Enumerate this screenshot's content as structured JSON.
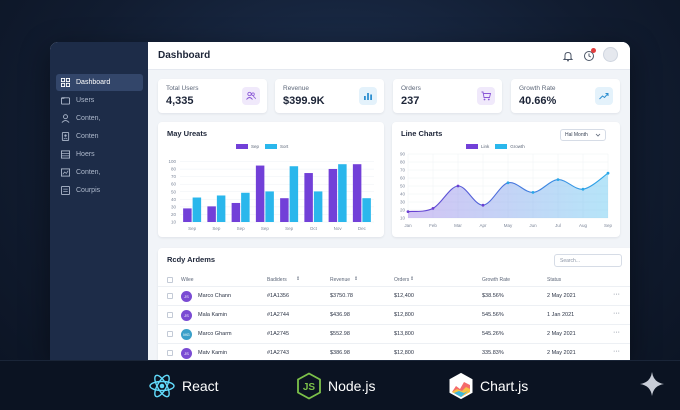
{
  "sidebar": {
    "items": [
      {
        "label": "Dashboard",
        "icon": "grid-icon",
        "active": true
      },
      {
        "label": "Users",
        "icon": "folder-icon"
      },
      {
        "label": "Conten,",
        "icon": "user-icon"
      },
      {
        "label": "Conten",
        "icon": "document-icon"
      },
      {
        "label": "Hoers",
        "icon": "table-icon"
      },
      {
        "label": "Conten,",
        "icon": "chart-icon"
      },
      {
        "label": "Courpis",
        "icon": "file-icon"
      }
    ]
  },
  "header": {
    "title": "Dashboard"
  },
  "stats": [
    {
      "label": "Total Users",
      "value": "4,335",
      "icon": "users-icon",
      "bg": "#f0e9fb",
      "fg": "#8a57d6"
    },
    {
      "label": "Revenue",
      "value": "$399.9K",
      "icon": "bar-chart-icon",
      "bg": "#e4f2fb",
      "fg": "#2d8fd0"
    },
    {
      "label": "Orders",
      "value": "237",
      "icon": "cart-icon",
      "bg": "#f0e9fb",
      "fg": "#8a57d6"
    },
    {
      "label": "Growth Rate",
      "value": "40.66%",
      "icon": "trend-up-icon",
      "bg": "#e4f2fb",
      "fg": "#2d8fd0"
    }
  ],
  "colors": {
    "purple": "#7240d8",
    "cyan": "#2ab7ec",
    "line": "#29a8e8"
  },
  "bar_panel": {
    "title": "May Ureats"
  },
  "line_panel": {
    "title": "Line Charts",
    "dropdown": "Hal Month"
  },
  "chart_data": [
    {
      "type": "bar",
      "title": "May Ureats",
      "categories": [
        "Sep",
        "Sep",
        "Sep",
        "Sep",
        "Sep",
        "Oct",
        "Nov",
        "Dec"
      ],
      "series": [
        {
          "name": "Sep",
          "values": [
            20,
            23,
            28,
            83,
            35,
            72,
            78,
            85
          ]
        },
        {
          "name": "Sort",
          "values": [
            36,
            39,
            43,
            45,
            82,
            45,
            85,
            35
          ]
        }
      ],
      "yticks": [
        10,
        20,
        30,
        40,
        50,
        60,
        70,
        80,
        100
      ],
      "ylim": [
        0,
        100
      ]
    },
    {
      "type": "area",
      "title": "Line Charts",
      "x": [
        "Jan",
        "Feb",
        "Mar",
        "Apr",
        "May",
        "Jun",
        "Jul",
        "Aug",
        "Sep"
      ],
      "series": [
        {
          "name": "Link",
          "values": [
            10,
            15,
            50,
            20,
            55,
            40,
            60,
            45,
            70
          ]
        },
        {
          "name": "Growth",
          "values": [
            10,
            15,
            50,
            20,
            55,
            40,
            60,
            45,
            70
          ]
        }
      ],
      "yticks": [
        10,
        20,
        30,
        40,
        50,
        60,
        70,
        80,
        90
      ],
      "ylim": [
        0,
        100
      ]
    }
  ],
  "table": {
    "title": "Rcdy Ardems",
    "search_placeholder": "Search...",
    "headers": [
      "Wilee",
      "Badiders",
      "Revenue",
      "Orders",
      "Growth Rate",
      "Status"
    ],
    "rows": [
      {
        "initials": "JS",
        "color": "#7a4bd3",
        "name": "Marco Chann",
        "id": "#1A1356",
        "revenue": "$3750.78",
        "orders": "$12,400",
        "growth": "$38.56%",
        "date": "2 May 2021"
      },
      {
        "initials": "JS",
        "color": "#7a4bd3",
        "name": "Mala Kamin",
        "id": "#1A2744",
        "revenue": "$436.98",
        "orders": "$12,800",
        "growth": "545.56%",
        "date": "1 Jan 2021"
      },
      {
        "initials": "MG",
        "color": "#3aa0c9",
        "name": "Marco Gharm",
        "id": "#1A2745",
        "revenue": "$552.98",
        "orders": "$13,800",
        "growth": "545.26%",
        "date": "2 May 2021"
      },
      {
        "initials": "JS",
        "color": "#7a4bd3",
        "name": "Matv Kamin",
        "id": "#1A2743",
        "revenue": "$386.98",
        "orders": "$12,800",
        "growth": "335.83%",
        "date": "2 May 2021"
      }
    ]
  },
  "footer": {
    "techs": [
      {
        "label": "React",
        "icon": "react-icon"
      },
      {
        "label": "Node.js",
        "icon": "nodejs-icon"
      },
      {
        "label": "Chart.js",
        "icon": "chartjs-icon"
      }
    ]
  }
}
